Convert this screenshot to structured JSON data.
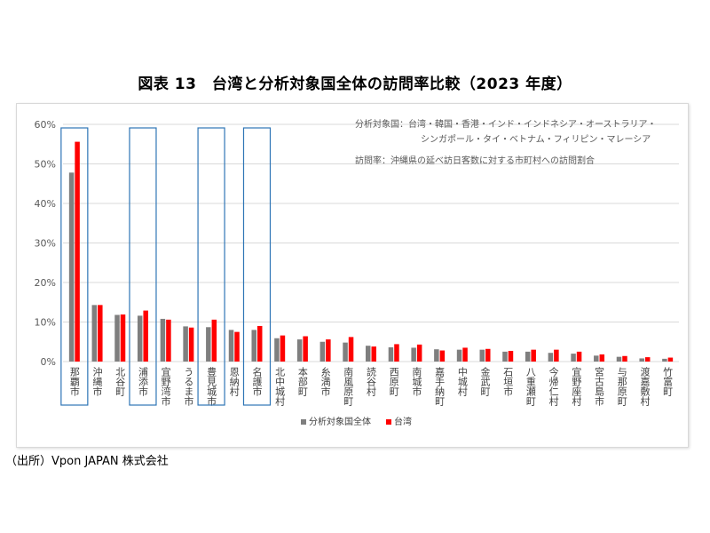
{
  "title": "図表 13　台湾と分析対象国全体の訪問率比較（2023 年度）",
  "source": "（出所）Vpon JAPAN 株式会社",
  "annotations": {
    "countries_line1": "分析対象国：台湾・韓国・香港・インド・インドネシア・オーストラリア・",
    "countries_line2": "シンガポール・タイ・ベトナム・フィリピン・マレーシア",
    "definition": "訪問率：沖縄県の延べ訪日客数に対する市町村への訪問割合"
  },
  "colors": {
    "series_all": "#7f7f7f",
    "series_taiwan": "#ff0000",
    "highlight_box": "#2e75b6",
    "grid": "#d9d9d9"
  },
  "chart_data": {
    "type": "bar",
    "ylim": [
      0,
      60
    ],
    "yticks": [
      "0%",
      "10%",
      "20%",
      "30%",
      "40%",
      "50%",
      "60%"
    ],
    "categories": [
      "那覇市",
      "沖縄市",
      "北谷町",
      "浦添市",
      "宜野湾市",
      "うるま市",
      "豊見城市",
      "恩納村",
      "名護市",
      "北中城村",
      "本部町",
      "糸満市",
      "南風原町",
      "読谷村",
      "西原町",
      "南城市",
      "嘉手納町",
      "中城村",
      "金武町",
      "石垣市",
      "八重瀬町",
      "今帰仁村",
      "宜野座村",
      "宮古島市",
      "与那原町",
      "渡嘉敷村",
      "竹富町"
    ],
    "series": [
      {
        "name": "分析対象国全体",
        "values": [
          47.8,
          14.3,
          11.8,
          11.6,
          10.8,
          8.9,
          8.7,
          8.0,
          8.0,
          5.9,
          5.6,
          5.0,
          4.8,
          4.0,
          3.6,
          3.5,
          3.1,
          3.0,
          3.0,
          2.5,
          2.5,
          2.2,
          2.0,
          1.5,
          1.2,
          0.8,
          0.7
        ]
      },
      {
        "name": "台湾",
        "values": [
          55.6,
          14.3,
          11.9,
          12.9,
          10.6,
          8.6,
          10.6,
          7.5,
          9.0,
          6.6,
          6.4,
          5.6,
          6.2,
          3.8,
          4.4,
          4.3,
          2.8,
          3.5,
          3.2,
          2.7,
          3.0,
          3.0,
          2.5,
          1.8,
          1.4,
          1.1,
          1.0
        ]
      }
    ],
    "highlighted": [
      "那覇市",
      "浦添市",
      "豊見城市",
      "名護市"
    ],
    "legend_position": "bottom",
    "grid": true
  }
}
